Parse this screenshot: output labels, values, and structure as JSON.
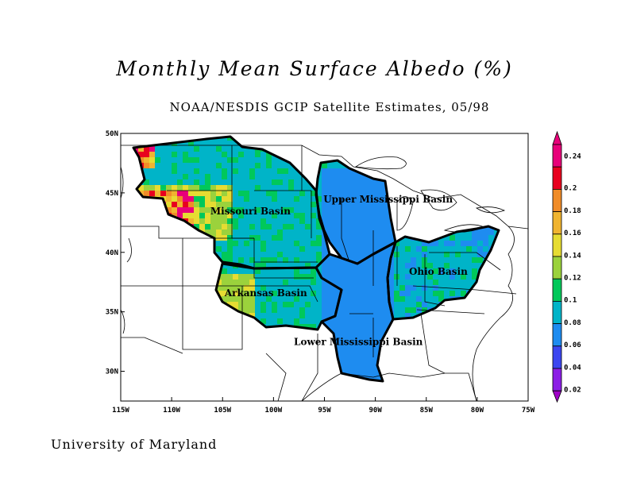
{
  "title": "Monthly Mean Surface Albedo (%)",
  "subtitle": "NOAA/NESDIS GCIP Satellite Estimates, 05/98",
  "credit": "University of Maryland",
  "map": {
    "lon_range": [
      -115,
      -75
    ],
    "lat_range": [
      27.5,
      50
    ],
    "lat_ticks": [
      {
        "value": 30,
        "label": "30N"
      },
      {
        "value": 35,
        "label": "35N"
      },
      {
        "value": 40,
        "label": "40N"
      },
      {
        "value": 45,
        "label": "45N"
      },
      {
        "value": 50,
        "label": "50N"
      }
    ],
    "lon_ticks": [
      {
        "value": -115,
        "label": "115W"
      },
      {
        "value": -110,
        "label": "110W"
      },
      {
        "value": -105,
        "label": "105W"
      },
      {
        "value": -100,
        "label": "100W"
      },
      {
        "value": -95,
        "label": "95W"
      },
      {
        "value": -90,
        "label": "90W"
      },
      {
        "value": -85,
        "label": "85W"
      },
      {
        "value": -80,
        "label": "80W"
      },
      {
        "value": -75,
        "label": "75W"
      }
    ],
    "basins": [
      {
        "name": "Missouri Basin",
        "lon": -106.2,
        "lat": 43.2
      },
      {
        "name": "Upper Mississippi Basin",
        "lon": -95.1,
        "lat": 44.2
      },
      {
        "name": "Ohio Basin",
        "lon": -86.7,
        "lat": 38.1
      },
      {
        "name": "Arkansas Basin",
        "lon": -104.8,
        "lat": 36.3
      },
      {
        "name": "Lower Mississippi Basin",
        "lon": -98.0,
        "lat": 32.2
      }
    ]
  },
  "legend": {
    "levels": [
      {
        "label": "0.24",
        "color": "#e8007a"
      },
      {
        "label": "0.2",
        "color": "#e8001e"
      },
      {
        "label": "0.18",
        "color": "#f08c28"
      },
      {
        "label": "0.16",
        "color": "#f0b430"
      },
      {
        "label": "0.14",
        "color": "#e6dc32"
      },
      {
        "label": "0.12",
        "color": "#9bd23c"
      },
      {
        "label": "0.1",
        "color": "#00c85a"
      },
      {
        "label": "0.08",
        "color": "#00b4c8"
      },
      {
        "label": "0.06",
        "color": "#1e8cf0"
      },
      {
        "label": "0.04",
        "color": "#3c46f0"
      },
      {
        "label": "0.02",
        "color": "#8c1ee6"
      }
    ],
    "bottom_color": "#a000c8"
  }
}
